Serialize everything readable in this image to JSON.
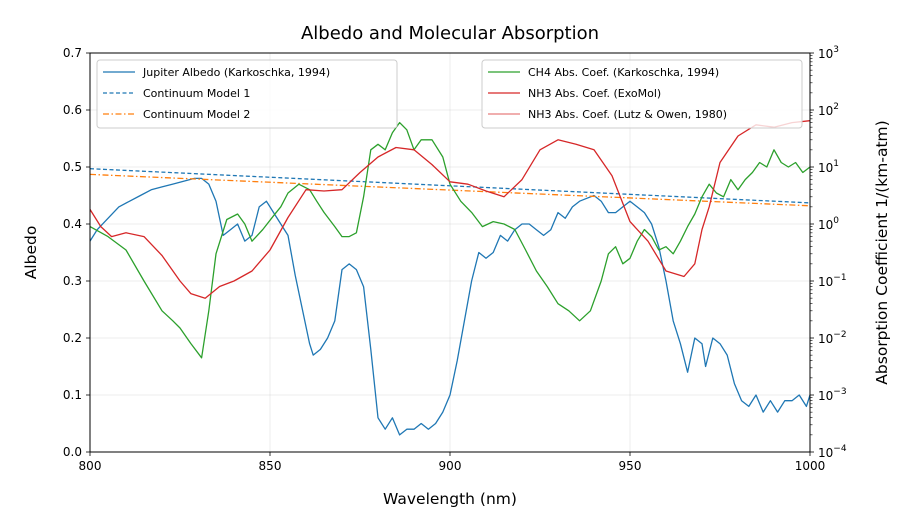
{
  "chart_data": {
    "type": "line",
    "title": "Albedo and Molecular Absorption",
    "xlabel": "Wavelength (nm)",
    "ylabel_left": "Albedo",
    "ylabel_right": "Absorption Coefficient 1/(km-atm)",
    "xlim": [
      800,
      1000
    ],
    "ylim_left": [
      0.0,
      0.7
    ],
    "ylim_right": [
      0.0001,
      1000
    ],
    "right_scale": "log",
    "grid": true,
    "x_ticks": [
      "800",
      "850",
      "900",
      "950",
      "1000"
    ],
    "y_left_ticks": [
      "0.0",
      "0.1",
      "0.2",
      "0.3",
      "0.4",
      "0.5",
      "0.6",
      "0.7"
    ],
    "y_right_ticks": [
      {
        "base": "10",
        "exp": "−4"
      },
      {
        "base": "10",
        "exp": "−3"
      },
      {
        "base": "10",
        "exp": "−2"
      },
      {
        "base": "10",
        "exp": "−1"
      },
      {
        "base": "10",
        "exp": "0"
      },
      {
        "base": "10",
        "exp": "1"
      },
      {
        "base": "10",
        "exp": "2"
      },
      {
        "base": "10",
        "exp": "3"
      }
    ],
    "legend_left_position": "upper-left",
    "legend_right_position": "upper-right",
    "series": [
      {
        "name": "Jupiter Albedo (Karkoschka, 1994)",
        "axis": "left",
        "color": "#1f77b4",
        "dash": "solid",
        "x": [
          800,
          802,
          805,
          808,
          811,
          814,
          817,
          820,
          823,
          826,
          829,
          831,
          833,
          835,
          837,
          839,
          841,
          843,
          845,
          847,
          849,
          851,
          853,
          855,
          857,
          859,
          861,
          862,
          864,
          866,
          868,
          870,
          872,
          874,
          876,
          878,
          880,
          882,
          884,
          886,
          888,
          890,
          892,
          894,
          896,
          898,
          900,
          902,
          904,
          906,
          908,
          910,
          912,
          914,
          916,
          918,
          920,
          922,
          924,
          926,
          928,
          930,
          932,
          934,
          936,
          938,
          940,
          942,
          944,
          946,
          948,
          950,
          952,
          954,
          956,
          958,
          960,
          962,
          964,
          966,
          968,
          970,
          971,
          973,
          975,
          977,
          979,
          981,
          983,
          985,
          987,
          989,
          991,
          993,
          995,
          997,
          999,
          1000
        ],
        "y": [
          0.37,
          0.39,
          0.41,
          0.43,
          0.44,
          0.45,
          0.46,
          0.465,
          0.47,
          0.475,
          0.48,
          0.48,
          0.47,
          0.44,
          0.38,
          0.39,
          0.4,
          0.37,
          0.38,
          0.43,
          0.44,
          0.42,
          0.4,
          0.38,
          0.31,
          0.25,
          0.19,
          0.17,
          0.18,
          0.2,
          0.23,
          0.32,
          0.33,
          0.32,
          0.29,
          0.18,
          0.06,
          0.04,
          0.06,
          0.03,
          0.04,
          0.04,
          0.05,
          0.04,
          0.05,
          0.07,
          0.1,
          0.16,
          0.23,
          0.3,
          0.35,
          0.34,
          0.35,
          0.38,
          0.37,
          0.39,
          0.4,
          0.4,
          0.39,
          0.38,
          0.39,
          0.42,
          0.41,
          0.43,
          0.44,
          0.445,
          0.45,
          0.44,
          0.42,
          0.42,
          0.43,
          0.44,
          0.43,
          0.42,
          0.4,
          0.36,
          0.3,
          0.23,
          0.19,
          0.14,
          0.2,
          0.19,
          0.15,
          0.2,
          0.19,
          0.17,
          0.12,
          0.09,
          0.08,
          0.1,
          0.07,
          0.09,
          0.07,
          0.09,
          0.09,
          0.1,
          0.08,
          0.1
        ]
      },
      {
        "name": "Continuum Model 1",
        "axis": "left",
        "color": "#1f77b4",
        "dash": "dashed",
        "x": [
          800,
          1000
        ],
        "y": [
          0.497,
          0.437
        ]
      },
      {
        "name": "Continuum Model 2",
        "axis": "left",
        "color": "#ff7f0e",
        "dash": "dashdot",
        "x": [
          800,
          1000
        ],
        "y": [
          0.487,
          0.432
        ]
      },
      {
        "name": "CH4 Abs. Coef. (Karkoschka, 1994)",
        "axis": "right",
        "color": "#2ca02c",
        "dash": "solid",
        "x": [
          800,
          805,
          810,
          815,
          820,
          823,
          825,
          828,
          831,
          833,
          835,
          838,
          841,
          843,
          845,
          848,
          851,
          853,
          855,
          858,
          861,
          863,
          865,
          868,
          870,
          872,
          874,
          876,
          878,
          880,
          882,
          884,
          886,
          888,
          890,
          892,
          895,
          898,
          900,
          903,
          906,
          909,
          912,
          915,
          918,
          921,
          924,
          927,
          930,
          933,
          936,
          939,
          942,
          944,
          946,
          948,
          950,
          952,
          954,
          956,
          958,
          960,
          962,
          964,
          966,
          968,
          970,
          972,
          974,
          976,
          978,
          980,
          982,
          984,
          986,
          988,
          990,
          992,
          994,
          996,
          998,
          1000
        ],
        "y": [
          0.9,
          0.6,
          0.35,
          0.1,
          0.03,
          0.02,
          0.015,
          0.008,
          0.0045,
          0.03,
          0.3,
          1.2,
          1.5,
          1.0,
          0.5,
          0.8,
          1.4,
          2.0,
          3.5,
          5.0,
          4.0,
          2.5,
          1.6,
          0.9,
          0.6,
          0.6,
          0.7,
          3.0,
          20.0,
          25.0,
          20.0,
          40.0,
          60.0,
          45.0,
          20.0,
          30.0,
          30.0,
          15.0,
          5.0,
          2.5,
          1.6,
          0.9,
          1.1,
          1.0,
          0.8,
          0.35,
          0.15,
          0.08,
          0.04,
          0.03,
          0.02,
          0.03,
          0.1,
          0.3,
          0.4,
          0.2,
          0.25,
          0.5,
          0.8,
          0.6,
          0.35,
          0.4,
          0.3,
          0.5,
          0.9,
          1.5,
          3.0,
          5.0,
          3.5,
          3.0,
          6.0,
          4.0,
          6.0,
          8.0,
          12.0,
          10.0,
          20.0,
          12.0,
          10.0,
          12.0,
          8.0,
          10.0
        ]
      },
      {
        "name": "NH3 Abs. Coef. (ExoMol)",
        "axis": "right",
        "color": "#d62728",
        "dash": "solid",
        "x": [
          800,
          803,
          806,
          810,
          815,
          820,
          825,
          828,
          832,
          836,
          840,
          845,
          850,
          855,
          860,
          865,
          870,
          875,
          880,
          885,
          890,
          895,
          900,
          905,
          910,
          915,
          920,
          925,
          930,
          935,
          940,
          945,
          950,
          955,
          960,
          965,
          968,
          970,
          972,
          975,
          980,
          985,
          990,
          995,
          1000
        ],
        "y": [
          1.8,
          0.9,
          0.6,
          0.7,
          0.6,
          0.28,
          0.1,
          0.06,
          0.05,
          0.08,
          0.1,
          0.15,
          0.35,
          1.3,
          4.0,
          3.8,
          4.0,
          8.0,
          15.0,
          22.0,
          20.0,
          11.0,
          5.5,
          5.0,
          3.8,
          3.0,
          6.0,
          20.0,
          30.0,
          25.0,
          20.0,
          7.0,
          1.1,
          0.5,
          0.15,
          0.12,
          0.2,
          0.8,
          2.0,
          12.0,
          35.0,
          55.0,
          50.0,
          60.0,
          65.0
        ]
      },
      {
        "name": "NH3 Abs. Coef. (Lutz & Owen, 1980)",
        "axis": "right",
        "color": "#d62728",
        "dash": "thin",
        "x": [],
        "y": []
      }
    ]
  }
}
